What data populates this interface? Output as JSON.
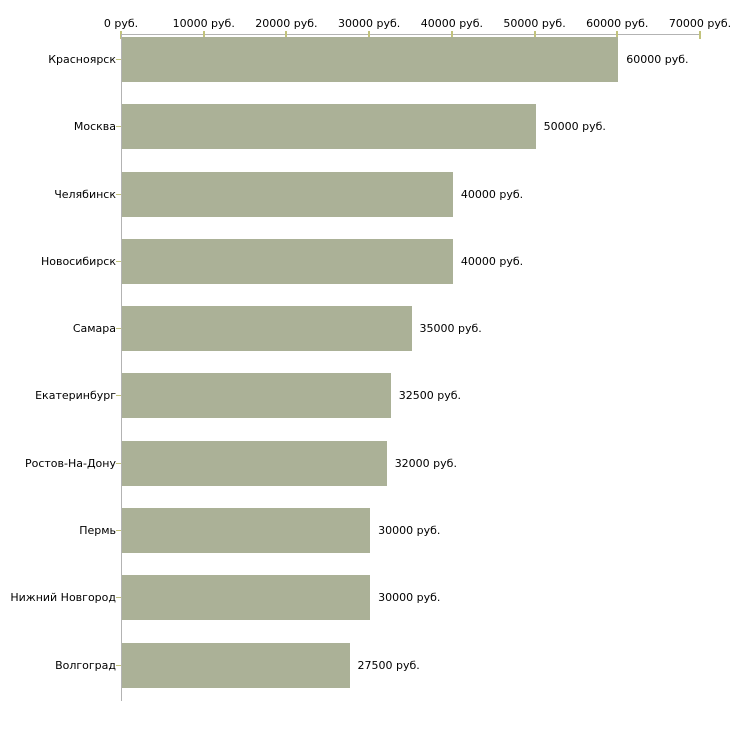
{
  "chart_data": {
    "type": "bar",
    "orientation": "horizontal",
    "title": "",
    "xlabel": "",
    "ylabel": "",
    "categories": [
      "Красноярск",
      "Москва",
      "Челябинск",
      "Новосибирск",
      "Самара",
      "Екатеринбург",
      "Ростов-На-Дону",
      "Пермь",
      "Нижний Новгород",
      "Волгоград"
    ],
    "values": [
      60000,
      50000,
      40000,
      40000,
      35000,
      32500,
      32000,
      30000,
      30000,
      27500
    ],
    "value_labels": [
      "60000 руб.",
      "50000 руб.",
      "40000 руб.",
      "40000 руб.",
      "35000 руб.",
      "32500 руб.",
      "32000 руб.",
      "30000 руб.",
      "30000 руб.",
      "27500 руб."
    ],
    "x_tick_labels": [
      "0 руб.",
      "10000 руб.",
      "20000 руб.",
      "30000 руб.",
      "40000 руб.",
      "50000 руб.",
      "60000 руб.",
      "70000 руб."
    ],
    "xlim": [
      0,
      70000
    ],
    "grid": false,
    "legend": null,
    "colors": {
      "bar": "#abb197",
      "axis": "#b3b3b3",
      "tick": "#c2c37c",
      "text": "#000000",
      "background": "#ffffff"
    }
  }
}
